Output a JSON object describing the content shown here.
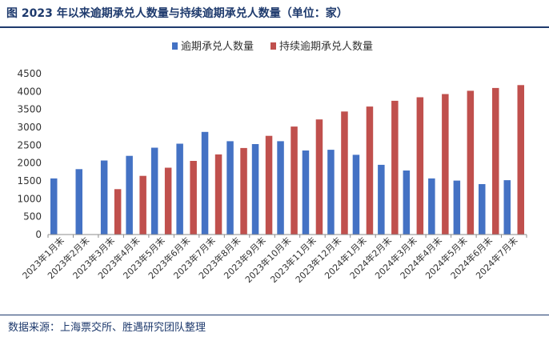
{
  "header": {
    "title": "图  2023 年以来逾期承兑人数量与持续逾期承兑人数量（单位：家）"
  },
  "footer": {
    "source": "数据来源：上海票交所、胜遇研究团队整理"
  },
  "colors": {
    "series1": "#4472c4",
    "series2": "#c0504d",
    "axis": "#8c8c8c",
    "title": "#1e3a6d"
  },
  "chart_data": {
    "type": "bar",
    "title": "2023 年以来逾期承兑人数量与持续逾期承兑人数量（单位：家）",
    "xlabel": "",
    "ylabel": "",
    "ylim": [
      0,
      4500
    ],
    "yticks": [
      0,
      500,
      1000,
      1500,
      2000,
      2500,
      3000,
      3500,
      4000,
      4500
    ],
    "grid": false,
    "legend": "top-center",
    "categories": [
      "2023年1月末",
      "2023年2月末",
      "2023年3月末",
      "2023年4月末",
      "2023年5月末",
      "2023年6月末",
      "2023年7月末",
      "2023年8月末",
      "2023年9月末",
      "2023年10月末",
      "2023年11月末",
      "2023年12月末",
      "2024年1月末",
      "2024年2月末",
      "2024年3月末",
      "2024年4月末",
      "2024年5月末",
      "2024年6月末",
      "2024年7月末"
    ],
    "series": [
      {
        "name": "逾期承兑人数量",
        "color": "#4472c4",
        "values": [
          1570,
          1830,
          2070,
          2200,
          2430,
          2540,
          2870,
          2610,
          2530,
          2610,
          2350,
          2370,
          2230,
          1950,
          1790,
          1570,
          1510,
          1410,
          1520
        ]
      },
      {
        "name": "持续逾期承兑人数量",
        "color": "#c0504d",
        "values": [
          null,
          null,
          1270,
          1640,
          1870,
          2060,
          2240,
          2420,
          2760,
          3020,
          3220,
          3440,
          3580,
          3740,
          3840,
          3930,
          4020,
          4100,
          4180
        ]
      }
    ]
  }
}
